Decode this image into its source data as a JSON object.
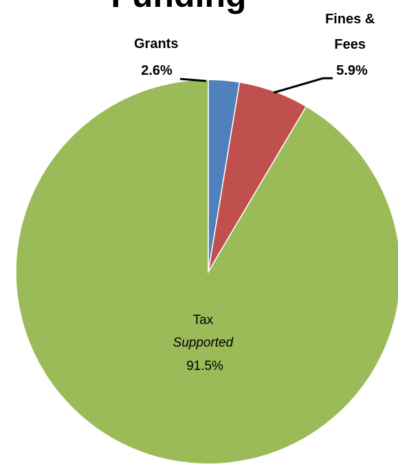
{
  "chart_data": {
    "type": "pie",
    "title": "Funding",
    "slices": [
      {
        "label": "Grants",
        "value": 2.6,
        "value_label": "2.6%",
        "color": "#4f81bd"
      },
      {
        "label": "Fines & Fees",
        "value": 5.9,
        "value_label": "5.9%",
        "color": "#c0504d"
      },
      {
        "label": "Tax Supported",
        "value": 91.5,
        "value_label": "91.5%",
        "color": "#9bbb59"
      }
    ],
    "label_lines": {
      "grants": [
        "Grants",
        "2.6%"
      ],
      "fines": [
        "Fines &",
        "Fees",
        "5.9%"
      ],
      "tax": [
        "Tax",
        "Supported",
        "91.5%"
      ]
    },
    "start_angle": "12 o'clock",
    "direction": "clockwise",
    "legend": "none"
  }
}
